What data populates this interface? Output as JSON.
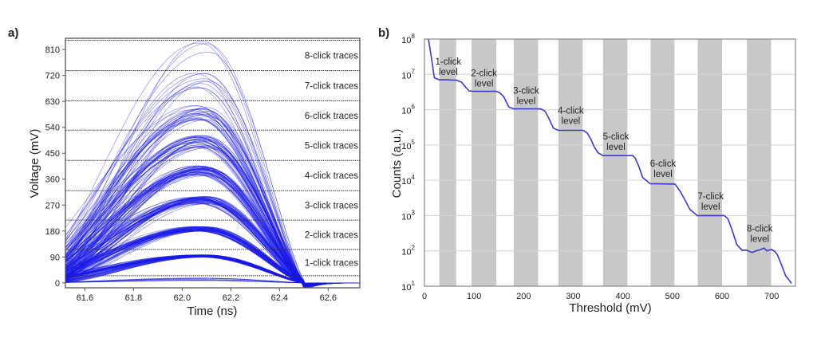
{
  "chart_data": [
    {
      "panel_label": "a)",
      "type": "line",
      "xlabel": "Time (ns)",
      "ylabel": "Voltage (mV)",
      "xlim": [
        61.52,
        62.73
      ],
      "ylim": [
        -17,
        849
      ],
      "xticks": [
        "61.6",
        "61.8",
        "62.0",
        "62.2",
        "62.4",
        "62.6"
      ],
      "xtick_values": [
        61.6,
        61.8,
        62.0,
        62.2,
        62.4,
        62.6
      ],
      "yticks": [
        "0",
        "90",
        "180",
        "270",
        "360",
        "450",
        "540",
        "630",
        "720",
        "810"
      ],
      "ytick_values": [
        0,
        90,
        180,
        270,
        360,
        450,
        540,
        630,
        720,
        810
      ],
      "grid": false,
      "trace_color": "#1a1ae6",
      "pulse_peak_time": 62.08,
      "pulse_end_time": 62.5,
      "threshold_lines_mV": [
        25,
        116,
        218,
        320,
        425,
        530,
        632,
        737,
        842
      ],
      "bands": [
        {
          "label": "1-click traces",
          "peak_mV": 95
        },
        {
          "label": "2-click traces",
          "peak_mV": 190
        },
        {
          "label": "3-click traces",
          "peak_mV": 292
        },
        {
          "label": "4-click traces",
          "peak_mV": 395
        },
        {
          "label": "5-click traces",
          "peak_mV": 497
        },
        {
          "label": "6-click traces",
          "peak_mV": 602
        },
        {
          "label": "7-click traces",
          "peak_mV": 710
        },
        {
          "label": "8-click traces",
          "peak_mV": 825
        }
      ]
    },
    {
      "panel_label": "b)",
      "type": "line",
      "xlabel": "Threshold (mV)",
      "ylabel": "Counts (a.u.)",
      "xlim": [
        0,
        748
      ],
      "ylim": [
        10,
        100000000
      ],
      "yscale": "log",
      "xticks": [
        "0",
        "100",
        "200",
        "300",
        "400",
        "500",
        "600",
        "700"
      ],
      "xtick_values": [
        0,
        100,
        200,
        300,
        400,
        500,
        600,
        700
      ],
      "ytick_exponents": [
        "1",
        "2",
        "3",
        "4",
        "5",
        "6",
        "7",
        "8"
      ],
      "ytick_base": "10",
      "grid": "horizontal",
      "line_color": "#3a3ad0",
      "band_color": "#c8c8c8",
      "shaded_bands_mV": [
        [
          30,
          64
        ],
        [
          95,
          145
        ],
        [
          180,
          229
        ],
        [
          270,
          319
        ],
        [
          360,
          409
        ],
        [
          456,
          504
        ],
        [
          551,
          600
        ],
        [
          650,
          699
        ]
      ],
      "series": [
        {
          "x": [
            8,
            14,
            20,
            30,
            45,
            65,
            75,
            82,
            90,
            100,
            145,
            152,
            160,
            170,
            180,
            235,
            243,
            250,
            260,
            270,
            320,
            328,
            335,
            342,
            350,
            360,
            420,
            425,
            432,
            440,
            455,
            505,
            515,
            525,
            535,
            550,
            605,
            612,
            620,
            630,
            640,
            650,
            660,
            668,
            675,
            685,
            690,
            700,
            707,
            712,
            720,
            728,
            735,
            740
          ],
          "y": [
            100000000,
            30000000,
            8000000,
            7000000,
            7000000,
            6800000,
            6000000,
            4500000,
            3400000,
            3300000,
            3300000,
            3000000,
            2300000,
            1200000,
            1050000,
            1050000,
            900000,
            600000,
            300000,
            260000,
            260000,
            220000,
            150000,
            90000,
            60000,
            50000,
            50000,
            42000,
            25000,
            12000,
            8000,
            7800,
            5000,
            2800,
            1500,
            1000,
            1000,
            800,
            400,
            150,
            105,
            105,
            90,
            100,
            105,
            120,
            100,
            110,
            95,
            75,
            40,
            20,
            15,
            12
          ]
        }
      ],
      "annotations": [
        {
          "line1": "1-click",
          "line2": "level",
          "x": 48,
          "log10y": 7.23
        },
        {
          "line1": "2-click",
          "line2": "level",
          "x": 120,
          "log10y": 6.9
        },
        {
          "line1": "3-click",
          "line2": "level",
          "x": 205,
          "log10y": 6.41
        },
        {
          "line1": "4-click",
          "line2": "level",
          "x": 295,
          "log10y": 5.84
        },
        {
          "line1": "5-click",
          "line2": "level",
          "x": 386,
          "log10y": 5.11
        },
        {
          "line1": "6-click",
          "line2": "level",
          "x": 481,
          "log10y": 4.34
        },
        {
          "line1": "7-click",
          "line2": "level",
          "x": 577,
          "log10y": 3.42
        },
        {
          "line1": "8-click",
          "line2": "level",
          "x": 676,
          "log10y": 2.5
        }
      ]
    }
  ]
}
